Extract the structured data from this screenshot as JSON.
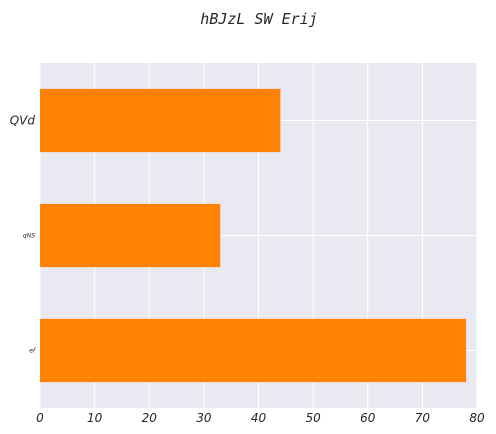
{
  "chart_data": {
    "type": "bar",
    "orientation": "horizontal",
    "title": "hBJzL SW Erij",
    "xlabel": "",
    "ylabel": "",
    "categories": [
      "QVd",
      "qNS",
      "ef"
    ],
    "values": [
      44,
      33,
      78
    ],
    "xlim": [
      0,
      80
    ],
    "xticks": [
      "0",
      "10",
      "20",
      "30",
      "40",
      "50",
      "60",
      "70",
      "80"
    ],
    "grid": true,
    "legend": "none"
  },
  "colors": {
    "bar": "#FF8205",
    "plot_background": "#E9E9F1",
    "grid": "#FFFFFF",
    "text": "#262626"
  }
}
